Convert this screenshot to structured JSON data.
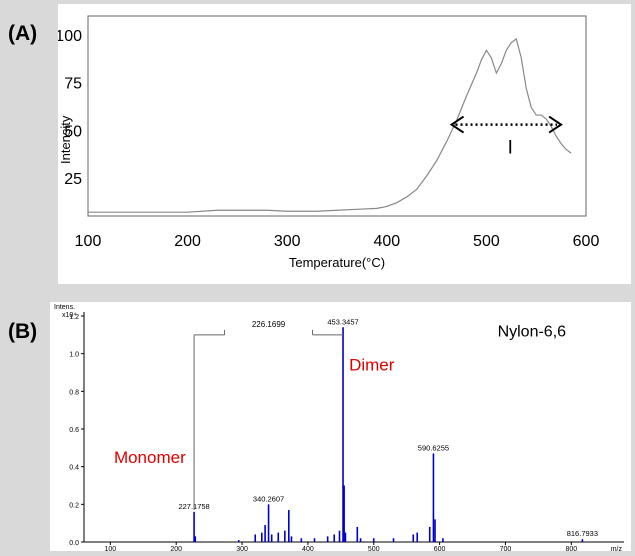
{
  "panels": {
    "a_label": "(A)",
    "b_label": "(B)"
  },
  "chart_data": [
    {
      "type": "line",
      "xlabel": "Temperature(°C)",
      "ylabel": "Intensity",
      "xlim": [
        100,
        600
      ],
      "ylim": [
        5,
        110
      ],
      "x_ticks": [
        "100",
        "200",
        "300",
        "400",
        "500",
        "600"
      ],
      "y_ticks": [
        "25",
        "50",
        "75",
        "100"
      ],
      "annotation": "I",
      "annotation_range": [
        465,
        575
      ],
      "series": [
        {
          "color": "#888888",
          "x": [
            100,
            150,
            200,
            230,
            250,
            280,
            300,
            330,
            350,
            370,
            390,
            400,
            410,
            420,
            430,
            440,
            450,
            460,
            470,
            480,
            490,
            495,
            500,
            505,
            510,
            515,
            520,
            525,
            530,
            535,
            540,
            545,
            550,
            555,
            560,
            565,
            570,
            575,
            580,
            585
          ],
          "y": [
            7,
            7,
            7,
            8,
            8,
            8,
            7.5,
            7.5,
            8,
            8.5,
            9,
            10,
            12,
            15,
            19,
            26,
            34,
            44,
            55,
            68,
            80,
            87,
            92,
            88,
            80,
            85,
            92,
            96,
            98,
            88,
            72,
            62,
            58,
            58,
            56,
            52,
            47,
            43,
            40,
            38
          ]
        }
      ]
    },
    {
      "type": "bar",
      "title": "Nylon-6,6",
      "y_axis_title": "Intens.",
      "y_axis_unit": "x10⁴",
      "xlabel": "m/z",
      "xlim": [
        60,
        880
      ],
      "ylim": [
        0,
        1.2
      ],
      "x_ticks": [
        "100",
        "200",
        "300",
        "400",
        "500",
        "600",
        "700",
        "800"
      ],
      "y_ticks": [
        "0.0",
        "0.2",
        "0.4",
        "0.6",
        "0.8",
        "1.0",
        "1.2"
      ],
      "bracket_label": "226.1699",
      "annotations": [
        {
          "text": "Monomer",
          "color": "#e00000"
        },
        {
          "text": "Dimer",
          "color": "#e00000"
        }
      ],
      "series": [
        {
          "color": "#0000cc",
          "peaks": [
            {
              "x": 227.1758,
              "y": 0.16,
              "label": "227.1758"
            },
            {
              "x": 229,
              "y": 0.03
            },
            {
              "x": 295,
              "y": 0.01
            },
            {
              "x": 320,
              "y": 0.04
            },
            {
              "x": 330,
              "y": 0.05
            },
            {
              "x": 335,
              "y": 0.09
            },
            {
              "x": 340.2607,
              "y": 0.2,
              "label": "340.2607"
            },
            {
              "x": 345,
              "y": 0.04
            },
            {
              "x": 355,
              "y": 0.05
            },
            {
              "x": 365,
              "y": 0.06
            },
            {
              "x": 371,
              "y": 0.17
            },
            {
              "x": 375,
              "y": 0.03
            },
            {
              "x": 390,
              "y": 0.02
            },
            {
              "x": 410,
              "y": 0.02
            },
            {
              "x": 430,
              "y": 0.03
            },
            {
              "x": 440,
              "y": 0.04
            },
            {
              "x": 448,
              "y": 0.06
            },
            {
              "x": 453.3457,
              "y": 1.14,
              "label": "453.3457"
            },
            {
              "x": 455,
              "y": 0.3
            },
            {
              "x": 457,
              "y": 0.05
            },
            {
              "x": 475,
              "y": 0.08
            },
            {
              "x": 480,
              "y": 0.02
            },
            {
              "x": 500,
              "y": 0.02
            },
            {
              "x": 530,
              "y": 0.02
            },
            {
              "x": 560,
              "y": 0.04
            },
            {
              "x": 566,
              "y": 0.05
            },
            {
              "x": 585,
              "y": 0.08
            },
            {
              "x": 590.6255,
              "y": 0.47,
              "label": "590.6255"
            },
            {
              "x": 593,
              "y": 0.12
            },
            {
              "x": 605,
              "y": 0.02
            },
            {
              "x": 816.7933,
              "y": 0.015,
              "label": "816.7933"
            }
          ]
        }
      ]
    }
  ]
}
